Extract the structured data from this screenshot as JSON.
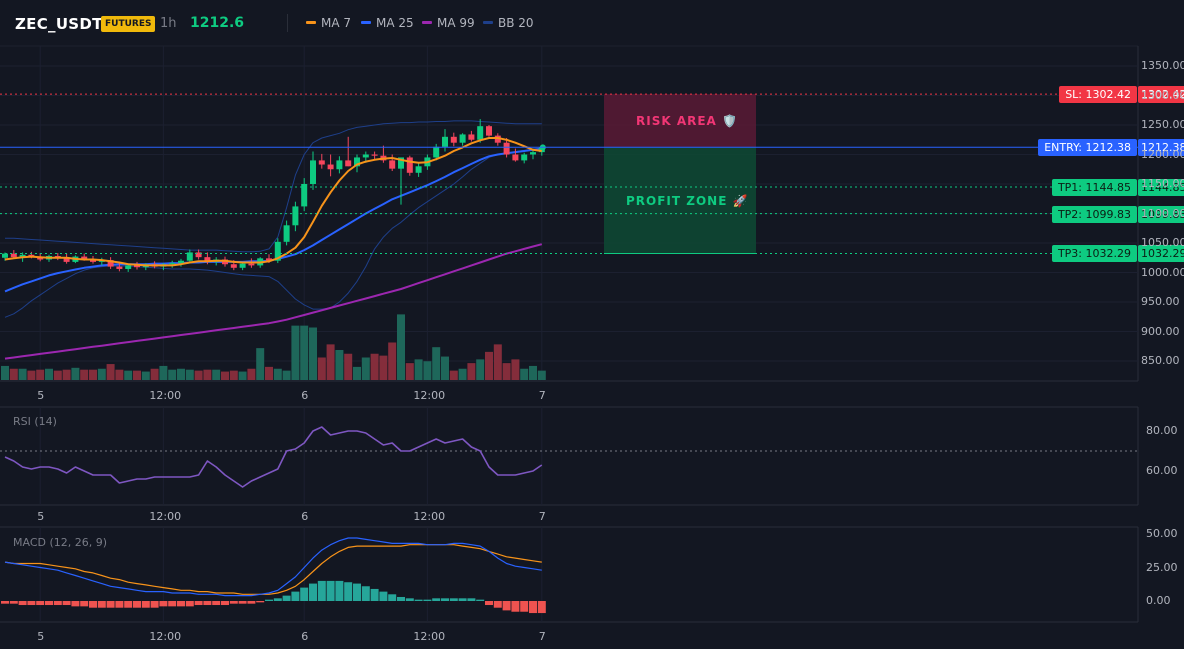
{
  "header": {
    "symbol": "ZEC_USDT",
    "badge": "FUTURES",
    "timeframe": "1h",
    "price": "1212.6",
    "legend": [
      {
        "label": "MA 7",
        "color": "#f7931a"
      },
      {
        "label": "MA 25",
        "color": "#2962ff"
      },
      {
        "label": "MA 99",
        "color": "#9c27b0"
      },
      {
        "label": "BB 20",
        "color": "#1e3f8a"
      }
    ]
  },
  "colors": {
    "up": "#0ecb81",
    "down": "#f6465d",
    "background": "#131722"
  },
  "trade": {
    "risk_label": "RISK AREA 🛡️",
    "profit_label": "PROFIT ZONE 🚀",
    "lines": [
      {
        "key": "sl",
        "tag_left": "SL: 1302.42",
        "tag_right": "1302.42",
        "value": 1302.42,
        "color": "#f23645"
      },
      {
        "key": "entry",
        "tag_left": "ENTRY: 1212.38",
        "tag_right": "1212.38",
        "value": 1212.38,
        "color": "#2962ff"
      },
      {
        "key": "tp1",
        "tag_left": "TP1: 1144.85",
        "tag_right": "1144.85",
        "value": 1144.85,
        "color": "#0ecb81"
      },
      {
        "key": "tp2",
        "tag_left": "TP2: 1099.83",
        "tag_right": "1099.83",
        "value": 1099.83,
        "color": "#0ecb81"
      },
      {
        "key": "tp3",
        "tag_left": "TP3: 1032.29",
        "tag_right": "1032.29",
        "value": 1032.29,
        "color": "#0ecb81"
      }
    ]
  },
  "price_axis": {
    "ticks": [
      "1350.00",
      "1300.00",
      "1250.00",
      "1200.00",
      "1150.00",
      "1100.00",
      "1050.00",
      "1000.00",
      "950.00",
      "900.00",
      "850.00"
    ],
    "tick_values": [
      1350,
      1300,
      1250,
      1200,
      1150,
      1100,
      1050,
      1000,
      950,
      900,
      850
    ]
  },
  "time_axis": {
    "labels": [
      "5",
      "12:00",
      "6",
      "12:00",
      "7"
    ],
    "label_bar_index": [
      4,
      18,
      34,
      48,
      61
    ]
  },
  "rsi": {
    "title": "RSI (14)",
    "ticks": [
      "80.00",
      "60.00"
    ],
    "tick_values": [
      80,
      60
    ],
    "level": 70,
    "values": [
      67,
      65,
      62,
      61,
      62,
      62,
      61,
      59,
      62,
      60,
      58,
      58,
      58,
      54,
      55,
      56,
      56,
      57,
      57,
      57,
      57,
      57,
      58,
      65,
      62,
      58,
      55,
      52,
      55,
      57,
      59,
      61,
      70,
      71,
      74,
      80,
      82,
      78,
      79,
      80,
      80,
      79,
      76,
      73,
      74,
      70,
      70,
      72,
      74,
      76,
      74,
      75,
      76,
      72,
      70,
      62,
      58,
      58,
      58,
      59,
      60,
      63
    ]
  },
  "macd": {
    "title": "MACD (12, 26, 9)",
    "ticks": [
      "50.00",
      "25.00",
      "0.00"
    ],
    "tick_values": [
      50,
      25,
      0
    ],
    "macd": [
      29,
      28,
      27,
      26,
      25,
      24,
      23,
      21,
      19,
      17,
      15,
      13,
      11,
      10,
      9,
      8,
      7,
      7,
      7,
      6,
      6,
      6,
      5,
      5,
      5,
      4,
      4,
      4,
      4,
      5,
      6,
      8,
      13,
      18,
      25,
      32,
      38,
      42,
      45,
      47,
      47,
      46,
      45,
      44,
      43,
      43,
      43,
      43,
      42,
      42,
      42,
      43,
      43,
      42,
      41,
      37,
      32,
      28,
      26,
      25,
      24,
      23
    ],
    "signal": [
      29,
      28,
      28,
      28,
      28,
      27,
      26,
      25,
      24,
      22,
      21,
      19,
      17,
      16,
      14,
      13,
      12,
      11,
      10,
      9,
      8,
      8,
      7,
      7,
      6,
      6,
      6,
      5,
      5,
      5,
      5,
      6,
      8,
      11,
      16,
      22,
      28,
      33,
      37,
      40,
      41,
      41,
      41,
      41,
      41,
      41,
      42,
      42,
      42,
      42,
      42,
      42,
      41,
      40,
      39,
      37,
      35,
      33,
      32,
      31,
      30,
      29
    ],
    "hist": [
      -2,
      -2,
      -3,
      -3,
      -3,
      -3,
      -3,
      -3,
      -4,
      -4,
      -5,
      -5,
      -5,
      -5,
      -5,
      -5,
      -5,
      -5,
      -4,
      -4,
      -4,
      -4,
      -3,
      -3,
      -3,
      -3,
      -2,
      -2,
      -2,
      -1,
      1,
      2,
      4,
      7,
      10,
      13,
      15,
      15,
      15,
      14,
      13,
      11,
      9,
      7,
      5,
      3,
      2,
      1,
      1,
      2,
      2,
      2,
      2,
      2,
      1,
      -3,
      -5,
      -7,
      -8,
      -8,
      -9,
      -9
    ]
  },
  "candles": [
    {
      "o": 1025,
      "h": 1034,
      "l": 1020,
      "c": 1032
    },
    {
      "o": 1032,
      "h": 1038,
      "l": 1024,
      "c": 1026
    },
    {
      "o": 1026,
      "h": 1034,
      "l": 1018,
      "c": 1030
    },
    {
      "o": 1030,
      "h": 1035,
      "l": 1024,
      "c": 1027
    },
    {
      "o": 1027,
      "h": 1033,
      "l": 1019,
      "c": 1022
    },
    {
      "o": 1022,
      "h": 1030,
      "l": 1018,
      "c": 1028
    },
    {
      "o": 1028,
      "h": 1033,
      "l": 1021,
      "c": 1024
    },
    {
      "o": 1024,
      "h": 1032,
      "l": 1015,
      "c": 1018
    },
    {
      "o": 1018,
      "h": 1029,
      "l": 1016,
      "c": 1027
    },
    {
      "o": 1027,
      "h": 1032,
      "l": 1020,
      "c": 1022
    },
    {
      "o": 1022,
      "h": 1028,
      "l": 1015,
      "c": 1018
    },
    {
      "o": 1018,
      "h": 1025,
      "l": 1012,
      "c": 1021
    },
    {
      "o": 1021,
      "h": 1026,
      "l": 1006,
      "c": 1010
    },
    {
      "o": 1010,
      "h": 1016,
      "l": 1002,
      "c": 1006
    },
    {
      "o": 1006,
      "h": 1014,
      "l": 1001,
      "c": 1012
    },
    {
      "o": 1012,
      "h": 1018,
      "l": 1005,
      "c": 1009
    },
    {
      "o": 1009,
      "h": 1016,
      "l": 1004,
      "c": 1014
    },
    {
      "o": 1014,
      "h": 1019,
      "l": 1007,
      "c": 1010
    },
    {
      "o": 1010,
      "h": 1016,
      "l": 1004,
      "c": 1014
    },
    {
      "o": 1014,
      "h": 1020,
      "l": 1008,
      "c": 1016
    },
    {
      "o": 1016,
      "h": 1023,
      "l": 1010,
      "c": 1020
    },
    {
      "o": 1020,
      "h": 1039,
      "l": 1018,
      "c": 1034
    },
    {
      "o": 1034,
      "h": 1039,
      "l": 1022,
      "c": 1026
    },
    {
      "o": 1026,
      "h": 1034,
      "l": 1014,
      "c": 1018
    },
    {
      "o": 1018,
      "h": 1026,
      "l": 1012,
      "c": 1022
    },
    {
      "o": 1022,
      "h": 1027,
      "l": 1010,
      "c": 1014
    },
    {
      "o": 1014,
      "h": 1021,
      "l": 1004,
      "c": 1008
    },
    {
      "o": 1008,
      "h": 1018,
      "l": 1004,
      "c": 1015
    },
    {
      "o": 1015,
      "h": 1024,
      "l": 1008,
      "c": 1012
    },
    {
      "o": 1012,
      "h": 1026,
      "l": 1008,
      "c": 1024
    },
    {
      "o": 1024,
      "h": 1031,
      "l": 1016,
      "c": 1020
    },
    {
      "o": 1020,
      "h": 1058,
      "l": 1016,
      "c": 1052
    },
    {
      "o": 1052,
      "h": 1088,
      "l": 1046,
      "c": 1080
    },
    {
      "o": 1080,
      "h": 1120,
      "l": 1070,
      "c": 1112
    },
    {
      "o": 1112,
      "h": 1160,
      "l": 1104,
      "c": 1150
    },
    {
      "o": 1150,
      "h": 1205,
      "l": 1140,
      "c": 1190
    },
    {
      "o": 1190,
      "h": 1201,
      "l": 1176,
      "c": 1183
    },
    {
      "o": 1183,
      "h": 1200,
      "l": 1163,
      "c": 1175
    },
    {
      "o": 1175,
      "h": 1197,
      "l": 1168,
      "c": 1190
    },
    {
      "o": 1190,
      "h": 1230,
      "l": 1180,
      "c": 1180
    },
    {
      "o": 1180,
      "h": 1200,
      "l": 1170,
      "c": 1195
    },
    {
      "o": 1195,
      "h": 1205,
      "l": 1186,
      "c": 1200
    },
    {
      "o": 1200,
      "h": 1205,
      "l": 1190,
      "c": 1198
    },
    {
      "o": 1198,
      "h": 1215,
      "l": 1186,
      "c": 1190
    },
    {
      "o": 1190,
      "h": 1200,
      "l": 1172,
      "c": 1176
    },
    {
      "o": 1176,
      "h": 1195,
      "l": 1115,
      "c": 1195
    },
    {
      "o": 1195,
      "h": 1198,
      "l": 1164,
      "c": 1169
    },
    {
      "o": 1169,
      "h": 1185,
      "l": 1162,
      "c": 1180
    },
    {
      "o": 1180,
      "h": 1200,
      "l": 1174,
      "c": 1195
    },
    {
      "o": 1195,
      "h": 1218,
      "l": 1190,
      "c": 1213
    },
    {
      "o": 1213,
      "h": 1243,
      "l": 1205,
      "c": 1230
    },
    {
      "o": 1230,
      "h": 1237,
      "l": 1214,
      "c": 1220
    },
    {
      "o": 1220,
      "h": 1236,
      "l": 1215,
      "c": 1234
    },
    {
      "o": 1234,
      "h": 1240,
      "l": 1222,
      "c": 1225
    },
    {
      "o": 1225,
      "h": 1260,
      "l": 1220,
      "c": 1248
    },
    {
      "o": 1248,
      "h": 1250,
      "l": 1230,
      "c": 1232
    },
    {
      "o": 1232,
      "h": 1236,
      "l": 1215,
      "c": 1220
    },
    {
      "o": 1220,
      "h": 1228,
      "l": 1195,
      "c": 1200
    },
    {
      "o": 1200,
      "h": 1210,
      "l": 1188,
      "c": 1190
    },
    {
      "o": 1190,
      "h": 1203,
      "l": 1185,
      "c": 1200
    },
    {
      "o": 1200,
      "h": 1210,
      "l": 1192,
      "c": 1204
    },
    {
      "o": 1204,
      "h": 1215,
      "l": 1198,
      "c": 1212
    }
  ],
  "volume": [
    15,
    12,
    12,
    10,
    11,
    12,
    10,
    11,
    13,
    11,
    11,
    12,
    17,
    11,
    10,
    10,
    9,
    12,
    15,
    11,
    12,
    11,
    10,
    11,
    11,
    9,
    10,
    9,
    12,
    34,
    14,
    12,
    10,
    58,
    58,
    56,
    24,
    38,
    32,
    28,
    14,
    24,
    28,
    26,
    40,
    70,
    18,
    22,
    20,
    35,
    25,
    10,
    12,
    18,
    22,
    30,
    38,
    18,
    22,
    12,
    15,
    10
  ],
  "ma7": [
    1022,
    1024,
    1026,
    1027,
    1026,
    1025,
    1025,
    1025,
    1023,
    1022,
    1022,
    1021,
    1019,
    1017,
    1014,
    1013,
    1012,
    1012,
    1012,
    1012,
    1014,
    1017,
    1019,
    1019,
    1020,
    1020,
    1018,
    1017,
    1017,
    1017,
    1019,
    1024,
    1032,
    1042,
    1060,
    1086,
    1113,
    1136,
    1156,
    1172,
    1183,
    1188,
    1191,
    1193,
    1194,
    1191,
    1188,
    1186,
    1187,
    1192,
    1198,
    1206,
    1212,
    1219,
    1224,
    1228,
    1228,
    1225,
    1220,
    1214,
    1208,
    1206
  ],
  "ma25": [
    968,
    974,
    980,
    985,
    990,
    995,
    999,
    1002,
    1005,
    1008,
    1010,
    1012,
    1013,
    1014,
    1014,
    1014,
    1014,
    1015,
    1015,
    1016,
    1016,
    1017,
    1017,
    1018,
    1018,
    1018,
    1018,
    1018,
    1019,
    1019,
    1020,
    1023,
    1027,
    1031,
    1038,
    1046,
    1055,
    1064,
    1073,
    1082,
    1091,
    1100,
    1108,
    1116,
    1124,
    1130,
    1136,
    1142,
    1148,
    1155,
    1162,
    1170,
    1177,
    1184,
    1191,
    1197,
    1200,
    1202,
    1204,
    1206,
    1208,
    1210
  ],
  "ma99": [
    854,
    856,
    858,
    860,
    862,
    864,
    866,
    868,
    870,
    872,
    874,
    876,
    878,
    880,
    882,
    884,
    886,
    888,
    890,
    892,
    894,
    896,
    898,
    900,
    902,
    904,
    906,
    908,
    910,
    912,
    914,
    917,
    920,
    924,
    928,
    932,
    936,
    940,
    944,
    948,
    952,
    956,
    960,
    964,
    968,
    972,
    977,
    982,
    987,
    992,
    997,
    1002,
    1007,
    1012,
    1017,
    1022,
    1027,
    1032,
    1036,
    1040,
    1044,
    1048
  ],
  "bb_upper": [
    1058,
    1058,
    1057,
    1056,
    1055,
    1054,
    1053,
    1052,
    1051,
    1050,
    1049,
    1048,
    1047,
    1046,
    1045,
    1044,
    1043,
    1042,
    1041,
    1040,
    1039,
    1038,
    1038,
    1038,
    1038,
    1037,
    1036,
    1035,
    1035,
    1036,
    1040,
    1060,
    1110,
    1165,
    1200,
    1220,
    1228,
    1232,
    1236,
    1242,
    1246,
    1248,
    1250,
    1252,
    1253,
    1254,
    1254,
    1255,
    1255,
    1256,
    1256,
    1257,
    1257,
    1257,
    1256,
    1255,
    1254,
    1253,
    1252,
    1252,
    1252,
    1252
  ],
  "bb_lower": [
    924,
    930,
    940,
    952,
    962,
    972,
    982,
    990,
    998,
    1004,
    1008,
    1010,
    1011,
    1011,
    1011,
    1010,
    1009,
    1008,
    1007,
    1006,
    1006,
    1006,
    1005,
    1004,
    1002,
    1000,
    998,
    996,
    995,
    994,
    993,
    985,
    970,
    955,
    945,
    938,
    938,
    940,
    950,
    965,
    985,
    1010,
    1040,
    1060,
    1075,
    1085,
    1098,
    1110,
    1120,
    1130,
    1140,
    1150,
    1162,
    1175,
    1185,
    1195,
    1200,
    1203,
    1205,
    1207,
    1208,
    1210
  ]
}
